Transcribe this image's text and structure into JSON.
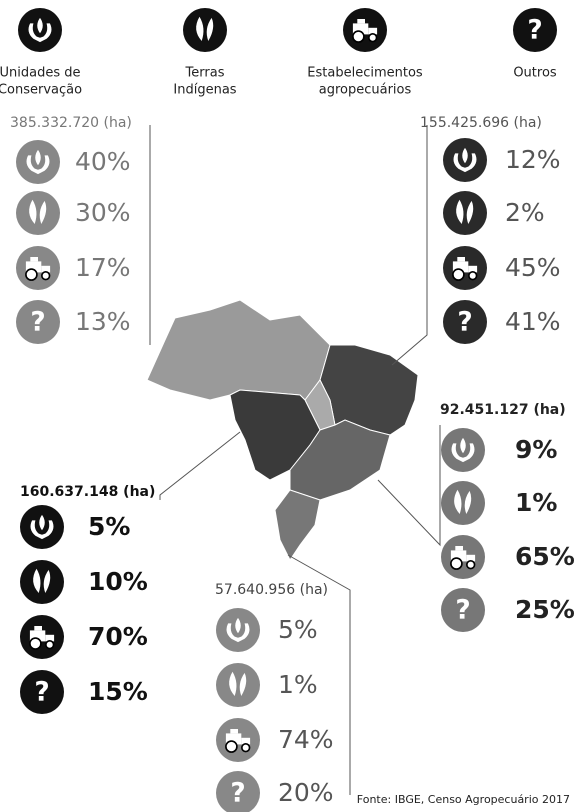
{
  "legend": [
    {
      "label_lines": [
        "Unidades de",
        "Conservação"
      ]
    },
    {
      "label_lines": [
        "Terras",
        "Indígenas"
      ]
    },
    {
      "label_lines": [
        "Estabelecimentos",
        "agropecuários"
      ]
    },
    {
      "label_lines": [
        "Outros"
      ],
      "icon_text": "?"
    }
  ],
  "regions": [
    {
      "area": "385.332.720 (ha)",
      "shares": [
        "40%",
        "30%",
        "17%",
        "13%"
      ]
    },
    {
      "area": "155.425.696 (ha)",
      "shares": [
        "12%",
        "2%",
        "45%",
        "41%"
      ]
    },
    {
      "area": "92.451.127 (ha)",
      "shares": [
        "9%",
        "1%",
        "65%",
        "25%"
      ]
    },
    {
      "area": "160.637.148 (ha)",
      "shares": [
        "5%",
        "10%",
        "70%",
        "15%"
      ]
    },
    {
      "area": "57.640.956 (ha)",
      "shares": [
        "5%",
        "1%",
        "74%",
        "20%"
      ]
    }
  ],
  "source": "Fonte: IBGE, Censo Agropecuário 2017"
}
